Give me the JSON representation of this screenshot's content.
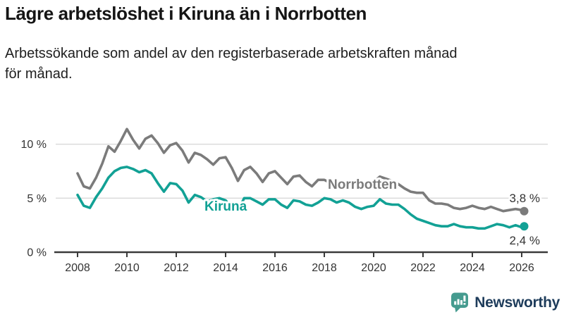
{
  "header": {
    "title": "Lägre arbetslöshet i Kiruna än i Norrbotten",
    "subtitle_line1": "Arbetssökande som andel av den registerbaserade arbetskraften månad",
    "subtitle_line2": "för månad."
  },
  "footer": {
    "brand": "Newsworthy",
    "logo_icon": "bar-chart-speech-bubble",
    "brand_text_color": "#1E3C5B",
    "logo_color": "#459B8F"
  },
  "colors": {
    "norrbotten": "#7B7B7B",
    "kiruna": "#12A195",
    "grid": "#D9D9D9",
    "axis": "#3A3A3A",
    "text": "#333333"
  },
  "chart_data": {
    "type": "line",
    "title": "Lägre arbetslöshet i Kiruna än i Norrbotten",
    "xlabel": "",
    "ylabel": "Arbetssökande som andel av den registerbaserade arbetskraften",
    "x_unit": "decimal year (monthly statistic, sampled quarterly)",
    "xlim": [
      2007.1,
      2027.1
    ],
    "ylim": [
      0,
      12.5
    ],
    "grid": "horizontal gridlines at 5 and 10",
    "legend_position": "inline labels on lines",
    "y_ticks": [
      {
        "value": 0,
        "label": "0 %"
      },
      {
        "value": 5,
        "label": "5 %"
      },
      {
        "value": 10,
        "label": "10 %"
      }
    ],
    "x_ticks": [
      {
        "value": 2008,
        "label": "2008"
      },
      {
        "value": 2010,
        "label": "2010"
      },
      {
        "value": 2012,
        "label": "2012"
      },
      {
        "value": 2014,
        "label": "2014"
      },
      {
        "value": 2016,
        "label": "2016"
      },
      {
        "value": 2018,
        "label": "2018"
      },
      {
        "value": 2020,
        "label": "2020"
      },
      {
        "value": 2022,
        "label": "2022"
      },
      {
        "value": 2024,
        "label": "2024"
      },
      {
        "value": 2026,
        "label": "2026"
      }
    ],
    "x": [
      2008,
      2008.25,
      2008.5,
      2008.75,
      2009,
      2009.25,
      2009.5,
      2009.75,
      2010,
      2010.25,
      2010.5,
      2010.75,
      2011,
      2011.25,
      2011.5,
      2011.75,
      2012,
      2012.25,
      2012.5,
      2012.75,
      2013,
      2013.25,
      2013.5,
      2013.75,
      2014,
      2014.25,
      2014.5,
      2014.75,
      2015,
      2015.25,
      2015.5,
      2015.75,
      2016,
      2016.25,
      2016.5,
      2016.75,
      2017,
      2017.25,
      2017.5,
      2017.75,
      2018,
      2018.25,
      2018.5,
      2018.75,
      2019,
      2019.25,
      2019.5,
      2019.75,
      2020,
      2020.25,
      2020.5,
      2020.75,
      2021,
      2021.25,
      2021.5,
      2021.75,
      2022,
      2022.25,
      2022.5,
      2022.75,
      2023,
      2023.25,
      2023.5,
      2023.75,
      2024,
      2024.25,
      2024.5,
      2024.75,
      2025,
      2025.25,
      2025.5,
      2025.75,
      2026,
      2026.1
    ],
    "series": [
      {
        "name": "Norrbotten",
        "color": "#7B7B7B",
        "end_label": "3,8 %",
        "end_value": 3.8,
        "values": [
          7.3,
          6.1,
          5.9,
          6.9,
          8.2,
          9.8,
          9.3,
          10.3,
          11.4,
          10.4,
          9.6,
          10.5,
          10.8,
          10.1,
          9.2,
          9.9,
          10.1,
          9.4,
          8.3,
          9.2,
          9.0,
          8.6,
          8.1,
          8.7,
          8.8,
          7.8,
          6.6,
          7.6,
          7.9,
          7.3,
          6.5,
          7.3,
          7.5,
          6.9,
          6.3,
          7.0,
          7.1,
          6.5,
          6.1,
          6.7,
          6.7,
          6.4,
          6.1,
          6.5,
          6.5,
          6.3,
          6.1,
          6.4,
          6.5,
          7.0,
          6.8,
          6.6,
          6.3,
          5.9,
          5.6,
          5.5,
          5.5,
          4.8,
          4.5,
          4.5,
          4.4,
          4.1,
          4.0,
          4.1,
          4.3,
          4.1,
          4.0,
          4.2,
          4.0,
          3.8,
          3.9,
          4.0,
          3.9,
          3.8
        ]
      },
      {
        "name": "Kiruna",
        "color": "#12A195",
        "end_label": "2,4 %",
        "end_value": 2.4,
        "values": [
          5.3,
          4.3,
          4.1,
          5.1,
          5.9,
          6.9,
          7.5,
          7.8,
          7.9,
          7.7,
          7.4,
          7.6,
          7.3,
          6.4,
          5.6,
          6.4,
          6.3,
          5.7,
          4.6,
          5.3,
          5.1,
          4.7,
          4.9,
          5.0,
          4.8,
          4.1,
          3.8,
          5.0,
          5.0,
          4.7,
          4.4,
          4.9,
          4.9,
          4.4,
          4.1,
          4.8,
          4.7,
          4.4,
          4.3,
          4.6,
          5.0,
          4.9,
          4.6,
          4.8,
          4.6,
          4.2,
          4.0,
          4.2,
          4.3,
          4.9,
          4.5,
          4.4,
          4.4,
          4.0,
          3.5,
          3.1,
          2.9,
          2.7,
          2.5,
          2.4,
          2.4,
          2.6,
          2.4,
          2.3,
          2.3,
          2.2,
          2.2,
          2.4,
          2.6,
          2.5,
          2.3,
          2.5,
          2.3,
          2.4
        ]
      }
    ]
  }
}
